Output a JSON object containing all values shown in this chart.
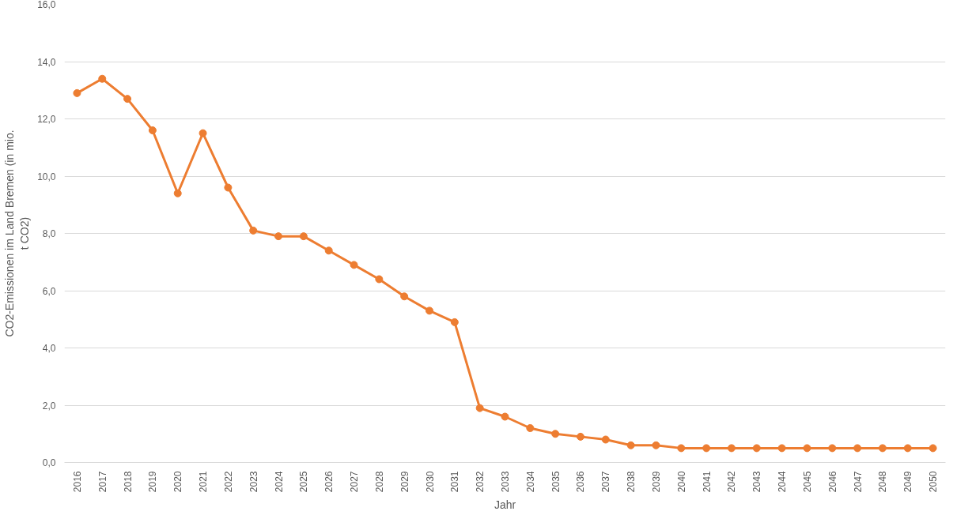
{
  "chart_data": {
    "type": "line",
    "xlabel": "Jahr",
    "ylabel": "CO2-Emissionen im Land Bremen (in mio. t CO2)",
    "categories": [
      "2016",
      "2017",
      "2018",
      "2019",
      "2020",
      "2021",
      "2022",
      "2023",
      "2024",
      "2025",
      "2026",
      "2027",
      "2028",
      "2029",
      "2030",
      "2031",
      "2032",
      "2033",
      "2034",
      "2035",
      "2036",
      "2037",
      "2038",
      "2039",
      "2040",
      "2041",
      "2042",
      "2043",
      "2044",
      "2045",
      "2046",
      "2047",
      "2048",
      "2049",
      "2050"
    ],
    "series": [
      {
        "color": "#ed7d31",
        "values": [
          12.9,
          13.4,
          12.7,
          11.6,
          9.4,
          11.5,
          9.6,
          8.1,
          7.9,
          7.9,
          7.4,
          6.9,
          6.4,
          5.8,
          5.3,
          4.9,
          1.9,
          1.6,
          1.2,
          1.0,
          0.9,
          0.8,
          0.6,
          0.6,
          0.5,
          0.5,
          0.5,
          0.5,
          0.5,
          0.5,
          0.5,
          0.5,
          0.5,
          0.5,
          0.5
        ]
      }
    ],
    "ylim": [
      0,
      16
    ],
    "yticks": [
      {
        "value": 0,
        "label": "0,0"
      },
      {
        "value": 2,
        "label": "2,0"
      },
      {
        "value": 4,
        "label": "4,0"
      },
      {
        "value": 6,
        "label": "6,0"
      },
      {
        "value": 8,
        "label": "8,0"
      },
      {
        "value": 10,
        "label": "10,0"
      },
      {
        "value": 12,
        "label": "12,0"
      },
      {
        "value": 14,
        "label": "14,0"
      },
      {
        "value": 16,
        "label": "16,0"
      }
    ],
    "grid": "y",
    "marker": "circle",
    "line_style": "solid"
  }
}
